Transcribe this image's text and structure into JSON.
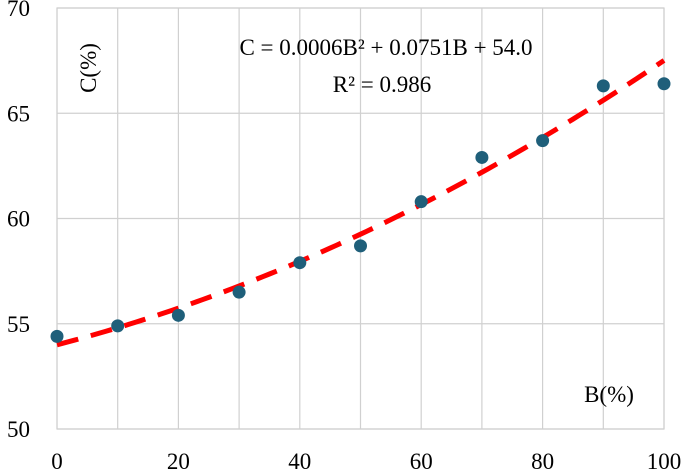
{
  "chart_data": {
    "type": "scatter",
    "title": "",
    "xlabel": "B(%)",
    "ylabel": "C(%)",
    "xlim": [
      0,
      100
    ],
    "ylim": [
      50,
      70
    ],
    "xticks": [
      0,
      20,
      40,
      60,
      80,
      100
    ],
    "yticks": [
      50,
      55,
      60,
      65,
      70
    ],
    "grid": true,
    "series": [
      {
        "x": [
          0,
          10,
          20,
          30,
          40,
          50,
          60,
          70,
          80,
          90,
          100
        ],
        "y": [
          54.4,
          54.9,
          55.4,
          56.5,
          57.9,
          58.7,
          60.8,
          62.9,
          63.7,
          66.3,
          66.4
        ],
        "color": "#1f5f7a"
      }
    ],
    "trendline": {
      "type": "polynomial",
      "coefficients": [
        0.0006,
        0.0751,
        54.0
      ],
      "color": "#ff0000",
      "style": "dashed"
    },
    "annotations": {
      "equation": "C = 0.0006B² + 0.0751B + 54.0",
      "r_squared": "R² = 0.986"
    }
  }
}
